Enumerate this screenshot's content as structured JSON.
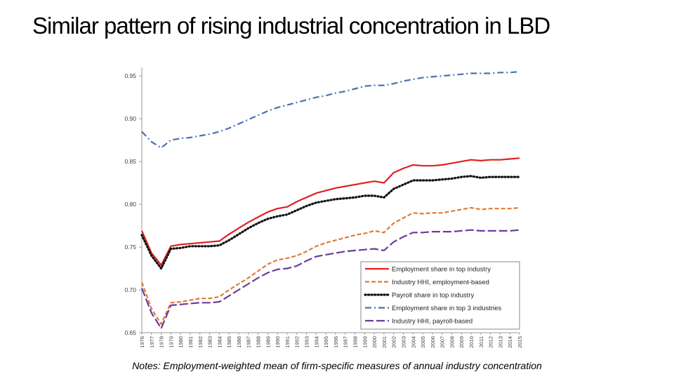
{
  "slide": {
    "title": "Similar pattern of rising industrial concentration in LBD",
    "notes": "Notes: Employment-weighted mean of firm-specific measures of annual industry concentration"
  },
  "chart_data": {
    "type": "line",
    "title": "",
    "xlabel": "",
    "ylabel": "",
    "ylim": [
      0.65,
      0.96
    ],
    "yticks": [
      "0.65",
      "0.70",
      "0.75",
      "0.80",
      "0.85",
      "0.90",
      "0.95"
    ],
    "x": [
      1976,
      1977,
      1978,
      1979,
      1980,
      1981,
      1982,
      1983,
      1984,
      1985,
      1986,
      1987,
      1988,
      1989,
      1990,
      1991,
      1992,
      1993,
      1994,
      1995,
      1996,
      1997,
      1998,
      1999,
      2000,
      2001,
      2002,
      2003,
      2004,
      2005,
      2006,
      2007,
      2008,
      2009,
      2010,
      2011,
      2012,
      2013,
      2014,
      2015
    ],
    "legend_position": "bottom-right",
    "series": [
      {
        "name": "Employment share in top industry",
        "color": "#e02020",
        "style": "solid",
        "values": [
          0.769,
          0.743,
          0.729,
          0.751,
          0.753,
          0.754,
          0.755,
          0.756,
          0.757,
          0.765,
          0.772,
          0.779,
          0.785,
          0.791,
          0.795,
          0.797,
          0.803,
          0.808,
          0.813,
          0.816,
          0.819,
          0.821,
          0.823,
          0.825,
          0.827,
          0.825,
          0.837,
          0.842,
          0.846,
          0.845,
          0.845,
          0.846,
          0.848,
          0.85,
          0.852,
          0.851,
          0.852,
          0.852,
          0.853,
          0.854
        ]
      },
      {
        "name": "Industry HHI, employment-based",
        "color": "#e07b39",
        "style": "dashed",
        "values": [
          0.709,
          0.678,
          0.66,
          0.685,
          0.686,
          0.688,
          0.69,
          0.69,
          0.692,
          0.7,
          0.707,
          0.714,
          0.722,
          0.73,
          0.735,
          0.737,
          0.74,
          0.745,
          0.751,
          0.755,
          0.758,
          0.761,
          0.764,
          0.766,
          0.769,
          0.767,
          0.778,
          0.784,
          0.79,
          0.789,
          0.79,
          0.79,
          0.792,
          0.794,
          0.796,
          0.794,
          0.795,
          0.795,
          0.795,
          0.796
        ]
      },
      {
        "name": "Payroll share in top industry",
        "color": "#111111",
        "style": "dotted",
        "values": [
          0.764,
          0.74,
          0.725,
          0.748,
          0.749,
          0.751,
          0.751,
          0.751,
          0.752,
          0.758,
          0.765,
          0.772,
          0.778,
          0.783,
          0.786,
          0.788,
          0.793,
          0.798,
          0.802,
          0.804,
          0.806,
          0.807,
          0.808,
          0.81,
          0.81,
          0.808,
          0.818,
          0.823,
          0.828,
          0.828,
          0.828,
          0.829,
          0.83,
          0.832,
          0.833,
          0.831,
          0.832,
          0.832,
          0.832,
          0.832
        ]
      },
      {
        "name": "Employment share in top 3 industries",
        "color": "#4a72b0",
        "style": "dashdot",
        "values": [
          0.885,
          0.873,
          0.866,
          0.875,
          0.877,
          0.878,
          0.88,
          0.882,
          0.885,
          0.889,
          0.894,
          0.899,
          0.904,
          0.909,
          0.913,
          0.916,
          0.919,
          0.922,
          0.925,
          0.927,
          0.93,
          0.932,
          0.935,
          0.938,
          0.939,
          0.939,
          0.941,
          0.944,
          0.946,
          0.948,
          0.949,
          0.95,
          0.951,
          0.952,
          0.953,
          0.953,
          0.953,
          0.954,
          0.954,
          0.955
        ]
      },
      {
        "name": "Industry HHI, payroll-based",
        "color": "#6a3d9a",
        "style": "longdash",
        "values": [
          0.702,
          0.673,
          0.655,
          0.682,
          0.683,
          0.684,
          0.685,
          0.685,
          0.686,
          0.693,
          0.7,
          0.707,
          0.714,
          0.72,
          0.724,
          0.725,
          0.728,
          0.734,
          0.739,
          0.741,
          0.743,
          0.745,
          0.746,
          0.747,
          0.748,
          0.746,
          0.756,
          0.762,
          0.767,
          0.767,
          0.768,
          0.768,
          0.768,
          0.769,
          0.77,
          0.769,
          0.769,
          0.769,
          0.769,
          0.77
        ]
      }
    ]
  }
}
